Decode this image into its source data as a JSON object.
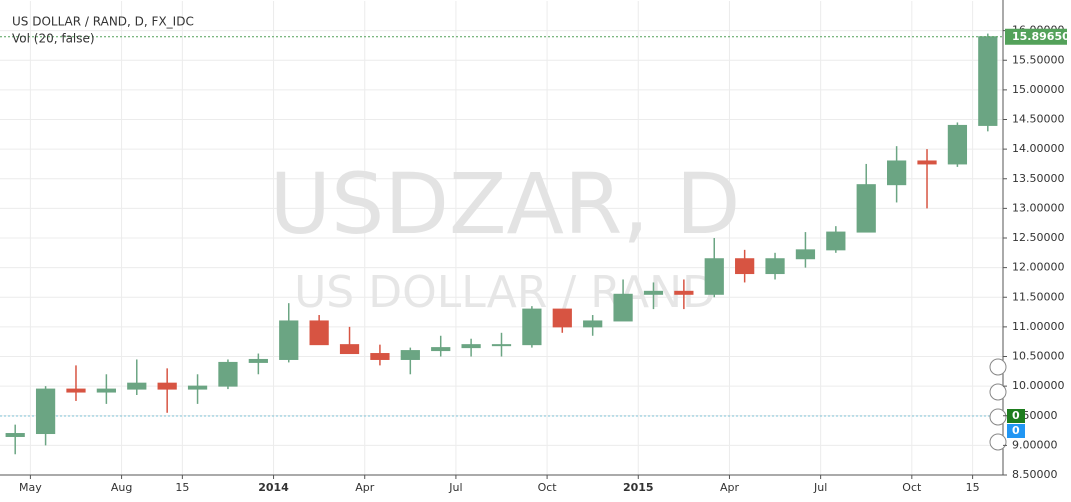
{
  "chart_data": {
    "type": "candlestick",
    "title": "US DOLLAR / RAND, D, FX_IDC",
    "subtitle": "Vol (20, false)",
    "watermark": "USDZAR, D",
    "watermark_sub": "US DOLLAR / RAND",
    "x": [
      "2013-04",
      "2013-05",
      "2013-06",
      "2013-07",
      "2013-08",
      "2013-09",
      "2013-10",
      "2013-11",
      "2013-12",
      "2014-01",
      "2014-02",
      "2014-03",
      "2014-04",
      "2014-05",
      "2014-06",
      "2014-07",
      "2014-08",
      "2014-09",
      "2014-10",
      "2014-11",
      "2014-12",
      "2015-01",
      "2015-02",
      "2015-03",
      "2015-04",
      "2015-05",
      "2015-06",
      "2015-07",
      "2015-08",
      "2015-09",
      "2015-10",
      "2015-11",
      "2015-12"
    ],
    "open": [
      9.15,
      9.2,
      9.95,
      9.9,
      9.95,
      10.05,
      9.95,
      10.0,
      10.4,
      10.45,
      11.1,
      10.7,
      10.55,
      10.45,
      10.6,
      10.65,
      10.7,
      10.7,
      11.3,
      11.0,
      11.1,
      11.55,
      11.6,
      11.55,
      12.15,
      11.9,
      12.15,
      12.3,
      12.6,
      13.4,
      13.8,
      13.75,
      14.4
    ],
    "high": [
      9.35,
      10.0,
      10.35,
      10.2,
      10.45,
      10.3,
      10.2,
      10.45,
      10.55,
      11.4,
      11.2,
      11.0,
      10.7,
      10.65,
      10.85,
      10.8,
      10.9,
      11.35,
      11.3,
      11.2,
      11.8,
      11.75,
      11.8,
      12.5,
      12.3,
      12.25,
      12.6,
      12.7,
      13.75,
      14.05,
      14.0,
      14.45,
      15.95
    ],
    "low": [
      8.85,
      9.0,
      9.75,
      9.7,
      9.85,
      9.55,
      9.7,
      9.95,
      10.2,
      10.4,
      10.7,
      10.55,
      10.35,
      10.2,
      10.5,
      10.5,
      10.5,
      10.65,
      10.9,
      10.85,
      11.1,
      11.3,
      11.3,
      11.5,
      11.75,
      11.8,
      12.0,
      12.25,
      12.6,
      13.1,
      13.0,
      13.7,
      14.3
    ],
    "close": [
      9.2,
      9.95,
      9.9,
      9.95,
      10.05,
      9.95,
      10.0,
      10.4,
      10.45,
      11.1,
      10.7,
      10.55,
      10.45,
      10.6,
      10.65,
      10.7,
      10.7,
      11.3,
      11.0,
      11.1,
      11.55,
      11.6,
      11.55,
      12.15,
      11.9,
      12.15,
      12.3,
      12.6,
      13.4,
      13.8,
      13.75,
      14.4,
      15.8965
    ],
    "up_color": "#6ba583",
    "down_color": "#d75442",
    "xlim": [
      "2013-04",
      "2015-12"
    ],
    "xticks": [
      {
        "value": "2013-05",
        "label": "May"
      },
      {
        "value": "2013-08",
        "label": "Aug"
      },
      {
        "value": "2013-10",
        "label": "15"
      },
      {
        "value": "2014-01",
        "label": "2014"
      },
      {
        "value": "2014-04",
        "label": "Apr"
      },
      {
        "value": "2014-07",
        "label": "Jul"
      },
      {
        "value": "2014-10",
        "label": "Oct"
      },
      {
        "value": "2015-01",
        "label": "2015"
      },
      {
        "value": "2015-04",
        "label": "Apr"
      },
      {
        "value": "2015-07",
        "label": "Jul"
      },
      {
        "value": "2015-10",
        "label": "Oct"
      },
      {
        "value": "2015-12",
        "label": "15"
      }
    ],
    "ylim": [
      8.5,
      16.5
    ],
    "yticks": [
      {
        "value": 8.5,
        "label": "8.50000"
      },
      {
        "value": 9,
        "label": "9.00000"
      },
      {
        "value": 9.5,
        "label": "9.50000"
      },
      {
        "value": 10,
        "label": "10.00000"
      },
      {
        "value": 10.5,
        "label": "10.50000"
      },
      {
        "value": 11,
        "label": "11.00000"
      },
      {
        "value": 11.5,
        "label": "11.50000"
      },
      {
        "value": 12,
        "label": "12.00000"
      },
      {
        "value": 12.5,
        "label": "12.50000"
      },
      {
        "value": 13,
        "label": "13.00000"
      },
      {
        "value": 13.5,
        "label": "13.50000"
      },
      {
        "value": 14,
        "label": "14.00000"
      },
      {
        "value": 14.5,
        "label": "14.50000"
      },
      {
        "value": 15,
        "label": "15.00000"
      },
      {
        "value": 15.5,
        "label": "15.50000"
      },
      {
        "value": 16,
        "label": "16.00000"
      }
    ],
    "last_price": {
      "value": 15.8965,
      "label": "15.89650",
      "color": "#53a15a"
    },
    "volume_labels": [
      {
        "label": "0",
        "color": "#1e7d1e"
      },
      {
        "label": "0",
        "color": "#2196f3"
      }
    ],
    "grid": true
  }
}
